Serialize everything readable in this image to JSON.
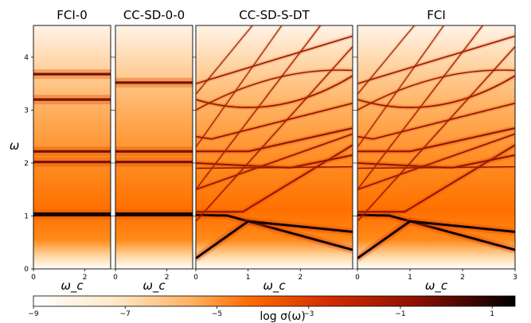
{
  "chart_data": {
    "type": "heatmap",
    "panels": [
      {
        "title": "FCI-0",
        "xlim": [
          0,
          3
        ],
        "xticks": [
          "0",
          "2"
        ],
        "xlabel": "ω_c",
        "bands": [
          1.03,
          2.02,
          2.22,
          3.2,
          3.68
        ]
      },
      {
        "title": "CC-SD-0-0",
        "xlim": [
          0,
          3
        ],
        "xticks": [
          "0",
          "2"
        ],
        "xlabel": "ω_c",
        "bands": [
          1.03,
          2.02,
          2.22,
          3.52
        ]
      },
      {
        "title": "CC-SD-S-DT",
        "xlim": [
          0,
          3
        ],
        "xticks": [
          "0",
          "1",
          "2"
        ],
        "xlabel": "ω_c"
      },
      {
        "title": "FCI",
        "xlim": [
          0,
          3
        ],
        "xticks": [
          "0",
          "1",
          "2",
          "3"
        ],
        "xlabel": "ω_c"
      }
    ],
    "ylabel": "ω",
    "ylim": [
      0,
      4.6
    ],
    "yticks": [
      "0",
      "1",
      "2",
      "3",
      "4"
    ],
    "colorbar": {
      "label": "log σ(ω)",
      "range": [
        -9,
        1.5
      ],
      "ticks": [
        "−9",
        "−7",
        "−5",
        "−3",
        "−1",
        "1"
      ],
      "colors": [
        "#ffffff",
        "#ffe8c8",
        "#ffb060",
        "#ff6a00",
        "#d02a00",
        "#8a1000",
        "#000000"
      ]
    }
  }
}
